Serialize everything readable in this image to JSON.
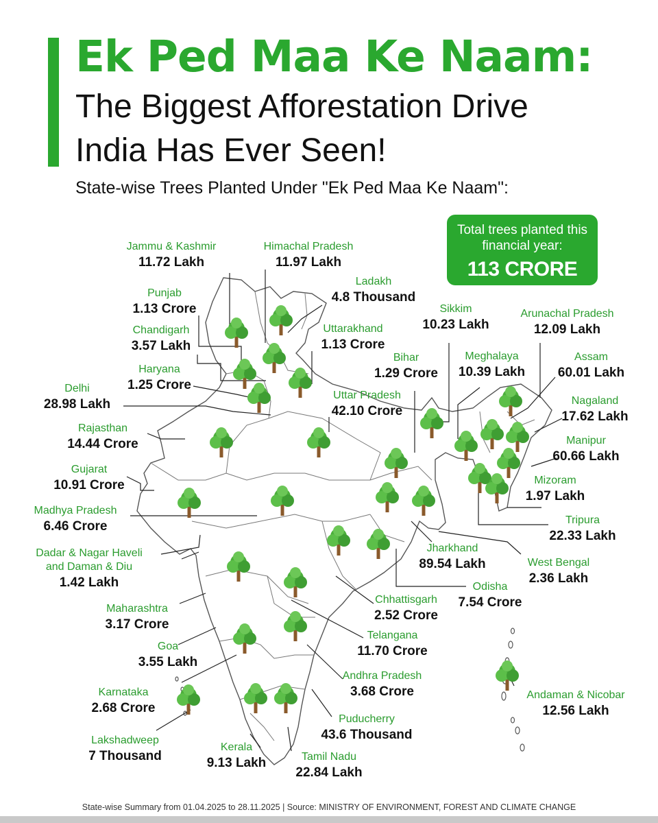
{
  "header": {
    "title": "Ek Ped Maa Ke Naam:",
    "subtitle_line1": "The Biggest Afforestation Drive",
    "subtitle_line2": "India Has Ever Seen!",
    "caption": "State-wise Trees Planted Under \"Ek Ped Maa Ke Naam\":"
  },
  "total": {
    "label": "Total trees planted this financial year:",
    "value": "113 CRORE"
  },
  "colors": {
    "accent": "#2aa82f",
    "label_green": "#2a9c2e",
    "tree_canopy": "#4caf3c",
    "tree_trunk": "#8a5a2b",
    "map_outline": "#555555"
  },
  "icons": {
    "tree": "tree-icon"
  },
  "states": [
    {
      "name": "Jammu & Kashmir",
      "value": "11.72 Lakh"
    },
    {
      "name": "Himachal Pradesh",
      "value": "11.97 Lakh"
    },
    {
      "name": "Punjab",
      "value": "1.13 Crore"
    },
    {
      "name": "Ladakh",
      "value": "4.8 Thousand"
    },
    {
      "name": "Chandigarh",
      "value": "3.57 Lakh"
    },
    {
      "name": "Uttarakhand",
      "value": "1.13 Crore"
    },
    {
      "name": "Haryana",
      "value": "1.25 Crore"
    },
    {
      "name": "Delhi",
      "value": "28.98 Lakh"
    },
    {
      "name": "Rajasthan",
      "value": "14.44 Crore"
    },
    {
      "name": "Gujarat",
      "value": "10.91 Crore"
    },
    {
      "name": "Madhya Pradesh",
      "value": "6.46 Crore"
    },
    {
      "name": "Dadar & Nagar Haveli and Daman & Diu",
      "value": "1.42 Lakh"
    },
    {
      "name": "Maharashtra",
      "value": "3.17 Crore"
    },
    {
      "name": "Goa",
      "value": "3.55 Lakh"
    },
    {
      "name": "Karnataka",
      "value": "2.68 Crore"
    },
    {
      "name": "Lakshadweep",
      "value": "7 Thousand"
    },
    {
      "name": "Kerala",
      "value": "9.13 Lakh"
    },
    {
      "name": "Tamil Nadu",
      "value": "22.84 Lakh"
    },
    {
      "name": "Puducherry",
      "value": "43.6 Thousand"
    },
    {
      "name": "Andhra Pradesh",
      "value": "3.68 Crore"
    },
    {
      "name": "Telangana",
      "value": "11.70 Crore"
    },
    {
      "name": "Chhattisgarh",
      "value": "2.52 Crore"
    },
    {
      "name": "Odisha",
      "value": "7.54 Crore"
    },
    {
      "name": "Jharkhand",
      "value": "89.54 Lakh"
    },
    {
      "name": "West Bengal",
      "value": "2.36 Lakh"
    },
    {
      "name": "Bihar",
      "value": "1.29 Crore"
    },
    {
      "name": "Uttar Pradesh",
      "value": "42.10 Crore"
    },
    {
      "name": "Sikkim",
      "value": "10.23 Lakh"
    },
    {
      "name": "Meghalaya",
      "value": "10.39 Lakh"
    },
    {
      "name": "Arunachal Pradesh",
      "value": "12.09 Lakh"
    },
    {
      "name": "Assam",
      "value": "60.01 Lakh"
    },
    {
      "name": "Nagaland",
      "value": "17.62 Lakh"
    },
    {
      "name": "Manipur",
      "value": "60.66 Lakh"
    },
    {
      "name": "Mizoram",
      "value": "1.97 Lakh"
    },
    {
      "name": "Tripura",
      "value": "22.33 Lakh"
    },
    {
      "name": "Andaman & Nicobar",
      "value": "12.56 Lakh"
    }
  ],
  "footer": "State-wise Summary from 01.04.2025 to 28.11.2025   |   Source: MINISTRY OF ENVIRONMENT, FOREST AND CLIMATE CHANGE"
}
